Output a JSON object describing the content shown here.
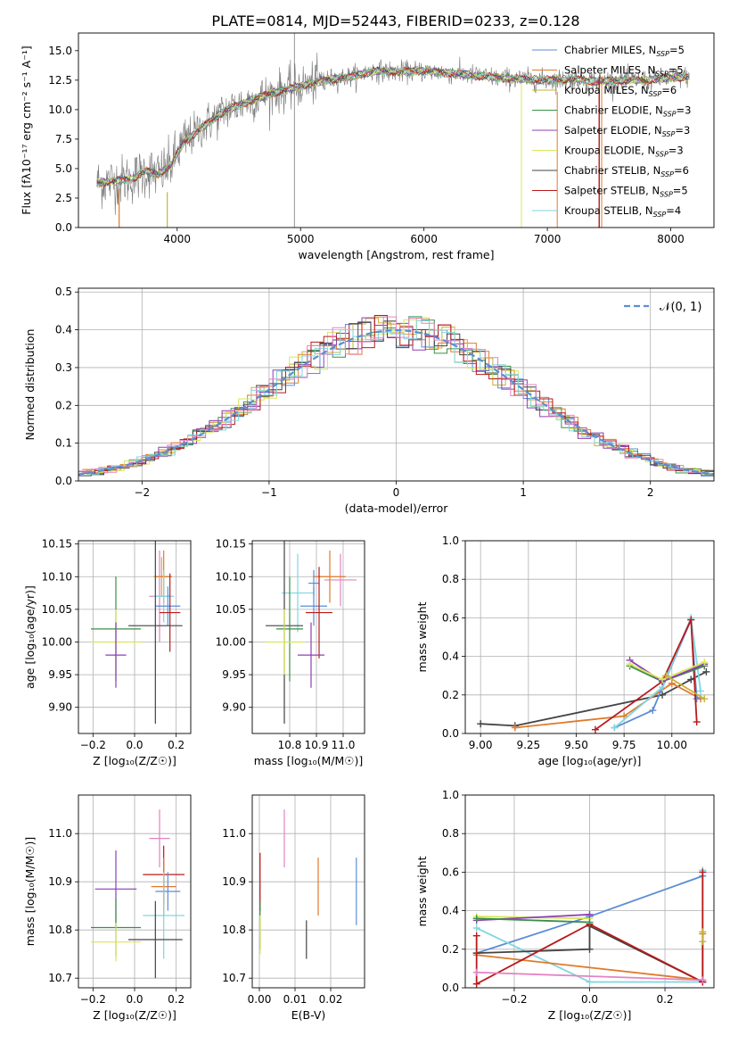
{
  "figure_title": "PLATE=0814, MJD=52443, FIBERID=0233, z=0.128",
  "colors": {
    "Chabrier MILES": "#5b8dd6",
    "Salpeter MILES": "#e07a2a",
    "Kroupa MILES": "#c8b23a",
    "Chabrier ELODIE": "#3a8f4a",
    "Salpeter ELODIE": "#8e3fb3",
    "Kroupa ELODIE": "#d9e65a",
    "Chabrier STELIB": "#444444",
    "Salpeter STELIB": "#b81a1a",
    "Kroupa STELIB": "#7fd6e0",
    "extra_pink": "#e384c2"
  },
  "chart_data": [
    {
      "type": "line",
      "panel": "spectrum",
      "title": "PLATE=0814, MJD=52443, FIBERID=0233, z=0.128",
      "xlabel": "wavelength [Angstrom, rest frame]",
      "ylabel": "Flux [fλ10⁻¹⁷ erg cm⁻² s⁻¹ A⁻¹]",
      "xlim": [
        3200,
        8350
      ],
      "ylim": [
        0,
        16.5
      ],
      "xticks": [
        "4000",
        "5000",
        "6000",
        "7000",
        "8000"
      ],
      "yticks": [
        "0.0",
        "2.5",
        "5.0",
        "7.5",
        "10.0",
        "12.5",
        "15.0"
      ],
      "legend_position": "right",
      "series": [
        {
          "name": "Chabrier MILES, N_SSP=5",
          "label": "Chabrier MILES, N",
          "sub": "SSP",
          "tail": "=5"
        },
        {
          "name": "Salpeter MILES, N_SSP=5",
          "label": "Salpeter MILES, N",
          "sub": "SSP",
          "tail": "=5"
        },
        {
          "name": "Kroupa MILES, N_SSP=6",
          "label": "Kroupa MILES, N",
          "sub": "SSP",
          "tail": "=6"
        },
        {
          "name": "Chabrier ELODIE, N_SSP=3",
          "label": "Chabrier ELODIE, N",
          "sub": "SSP",
          "tail": "=3"
        },
        {
          "name": "Salpeter ELODIE, N_SSP=3",
          "label": "Salpeter ELODIE, N",
          "sub": "SSP",
          "tail": "=3"
        },
        {
          "name": "Kroupa ELODIE, N_SSP=3",
          "label": "Kroupa ELODIE, N",
          "sub": "SSP",
          "tail": "=3"
        },
        {
          "name": "Chabrier STELIB, N_SSP=6",
          "label": "Chabrier STELIB, N",
          "sub": "SSP",
          "tail": "=6"
        },
        {
          "name": "Salpeter STELIB, N_SSP=5",
          "label": "Salpeter STELIB, N",
          "sub": "SSP",
          "tail": "=5"
        },
        {
          "name": "Kroupa STELIB, N_SSP=4",
          "label": "Kroupa STELIB, N",
          "sub": "SSP",
          "tail": "=4"
        }
      ],
      "continuum": {
        "x": [
          3350,
          3450,
          3550,
          3650,
          3750,
          3850,
          3950,
          4050,
          4200,
          4400,
          4600,
          4800,
          5000,
          5200,
          5400,
          5600,
          5800,
          6000,
          6200,
          6400,
          6600,
          6800,
          7000,
          7200,
          7400,
          7600,
          7800,
          8000,
          8150
        ],
        "y": [
          3.8,
          3.9,
          4.0,
          4.2,
          4.8,
          4.5,
          5.3,
          7.2,
          8.5,
          10.0,
          10.8,
          11.5,
          12.0,
          12.5,
          12.8,
          13.3,
          13.2,
          13.3,
          13.1,
          12.9,
          12.7,
          12.6,
          12.5,
          12.6,
          12.4,
          12.5,
          12.5,
          12.7,
          12.8
        ]
      }
    },
    {
      "type": "line",
      "panel": "residual-histogram",
      "xlabel": "(data-model)/error",
      "ylabel": "Normed distribution",
      "xlim": [
        -2.5,
        2.5
      ],
      "ylim": [
        0,
        0.51
      ],
      "xticks": [
        "−2",
        "−1",
        "0",
        "1",
        "2"
      ],
      "yticks": [
        "0.0",
        "0.1",
        "0.2",
        "0.3",
        "0.4",
        "0.5"
      ],
      "legend": "𝒩(0, 1)",
      "legend_position": "top-right",
      "bin_width": 0.1
    },
    {
      "type": "scatter",
      "panel": "age-vs-Z",
      "xlabel": "Z [log₁₀(Z/Z☉)]",
      "ylabel": "age  [log₁₀(age/yr)]",
      "xlim": [
        -0.27,
        0.27
      ],
      "ylim": [
        9.86,
        10.155
      ],
      "xticks": [
        "−0.2",
        "0.0",
        "0.2"
      ],
      "yticks": [
        "9.90",
        "9.95",
        "10.00",
        "10.05",
        "10.10",
        "10.15"
      ],
      "points": [
        {
          "s": "Kroupa MILES",
          "x": 0.13,
          "y": 10.1,
          "xe": 0.04,
          "ye": 0.03
        },
        {
          "s": "Salpeter MILES",
          "x": 0.14,
          "y": 10.1,
          "xe": 0.04,
          "ye": 0.04
        },
        {
          "s": "extra_pink",
          "x": 0.12,
          "y": 10.07,
          "xe": 0.05,
          "ye": 0.07
        },
        {
          "s": "Kroupa STELIB",
          "x": 0.14,
          "y": 10.07,
          "xe": 0.05,
          "ye": 0.04
        },
        {
          "s": "Chabrier MILES",
          "x": 0.16,
          "y": 10.055,
          "xe": 0.06,
          "ye": 0.03
        },
        {
          "s": "Salpeter STELIB",
          "x": 0.17,
          "y": 10.045,
          "xe": 0.05,
          "ye": 0.06
        },
        {
          "s": "Chabrier STELIB",
          "x": 0.1,
          "y": 10.025,
          "xe": 0.13,
          "ye": 0.15
        },
        {
          "s": "Chabrier ELODIE",
          "x": -0.09,
          "y": 10.02,
          "xe": 0.12,
          "ye": 0.08
        },
        {
          "s": "Kroupa ELODIE",
          "x": -0.09,
          "y": 10.0,
          "xe": 0.12,
          "ye": 0.05
        },
        {
          "s": "Salpeter ELODIE",
          "x": -0.09,
          "y": 9.98,
          "xe": 0.05,
          "ye": 0.05
        }
      ]
    },
    {
      "type": "scatter",
      "panel": "age-vs-mass",
      "xlabel": "mass [log₁₀(M/M☉)]",
      "ylabel": "",
      "xlim": [
        10.66,
        11.08
      ],
      "ylim": [
        9.86,
        10.155
      ],
      "xticks": [
        "10.8",
        "10.9",
        "11.0"
      ],
      "yticks": [
        "9.90",
        "9.95",
        "10.00",
        "10.05",
        "10.10",
        "10.15"
      ],
      "points": [
        {
          "s": "extra_pink",
          "x": 10.99,
          "y": 10.095,
          "xe": 0.06,
          "ye": 0.04
        },
        {
          "s": "Salpeter MILES",
          "x": 10.95,
          "y": 10.1,
          "xe": 0.06,
          "ye": 0.04
        },
        {
          "s": "Chabrier MILES",
          "x": 10.89,
          "y": 10.09,
          "xe": 0.02,
          "ye": 0.02
        },
        {
          "s": "Kroupa STELIB",
          "x": 10.83,
          "y": 10.075,
          "xe": 0.06,
          "ye": 0.06
        },
        {
          "s": "Chabrier MILES",
          "x": 10.89,
          "y": 10.055,
          "xe": 0.05,
          "ye": 0.03
        },
        {
          "s": "Salpeter STELIB",
          "x": 10.91,
          "y": 10.045,
          "xe": 0.05,
          "ye": 0.07
        },
        {
          "s": "Chabrier STELIB",
          "x": 10.78,
          "y": 10.025,
          "xe": 0.07,
          "ye": 0.15
        },
        {
          "s": "Chabrier ELODIE",
          "x": 10.8,
          "y": 10.02,
          "xe": 0.05,
          "ye": 0.08
        },
        {
          "s": "Kroupa ELODIE",
          "x": 10.78,
          "y": 10.0,
          "xe": 0.07,
          "ye": 0.05
        },
        {
          "s": "Salpeter ELODIE",
          "x": 10.88,
          "y": 9.98,
          "xe": 0.05,
          "ye": 0.05
        }
      ]
    },
    {
      "type": "line",
      "panel": "mass-weight-vs-age",
      "xlabel": "age  [log₁₀(age/yr)]",
      "ylabel": "mass weight",
      "xlim": [
        8.92,
        10.22
      ],
      "ylim": [
        0,
        1
      ],
      "xticks": [
        "9.00",
        "9.25",
        "9.50",
        "9.75",
        "10.00"
      ],
      "yticks": [
        "0.0",
        "0.2",
        "0.4",
        "0.6",
        "0.8",
        "1.0"
      ],
      "series": [
        {
          "s": "Chabrier STELIB",
          "x": [
            9.0,
            9.18,
            9.95,
            10.1,
            10.18
          ],
          "y": [
            0.05,
            0.04,
            0.2,
            0.28,
            0.32
          ]
        },
        {
          "s": "Salpeter MILES",
          "x": [
            9.18,
            9.75,
            10.0,
            10.15
          ],
          "y": [
            0.03,
            0.09,
            0.26,
            0.18
          ]
        },
        {
          "s": "Chabrier MILES",
          "x": [
            9.7,
            9.9,
            10.1,
            10.13
          ],
          "y": [
            0.03,
            0.12,
            0.59,
            0.18
          ]
        },
        {
          "s": "Kroupa STELIB",
          "x": [
            9.7,
            9.95,
            10.1,
            10.15
          ],
          "y": [
            0.03,
            0.24,
            0.6,
            0.22
          ]
        },
        {
          "s": "Salpeter STELIB",
          "x": [
            9.6,
            9.95,
            10.1,
            10.13
          ],
          "y": [
            0.02,
            0.27,
            0.59,
            0.06
          ]
        },
        {
          "s": "Chabrier ELODIE",
          "x": [
            9.78,
            9.95,
            10.17
          ],
          "y": [
            0.35,
            0.27,
            0.35
          ]
        },
        {
          "s": "Salpeter ELODIE",
          "x": [
            9.78,
            9.95,
            10.17
          ],
          "y": [
            0.38,
            0.27,
            0.36
          ]
        },
        {
          "s": "Kroupa ELODIE",
          "x": [
            9.78,
            9.95,
            10.17
          ],
          "y": [
            0.36,
            0.28,
            0.37
          ]
        },
        {
          "s": "Kroupa MILES",
          "x": [
            9.97,
            10.17
          ],
          "y": [
            0.3,
            0.18
          ]
        }
      ]
    },
    {
      "type": "scatter",
      "panel": "mass-vs-Z",
      "xlabel": "Z [log₁₀(Z/Z☉)]",
      "ylabel": "mass [log₁₀(M/M☉)]",
      "xlim": [
        -0.27,
        0.27
      ],
      "ylim": [
        10.68,
        11.08
      ],
      "xticks": [
        "−0.2",
        "0.0",
        "0.2"
      ],
      "yticks": [
        "10.7",
        "10.8",
        "10.9",
        "11.0"
      ],
      "points": [
        {
          "s": "extra_pink",
          "x": 0.12,
          "y": 10.99,
          "xe": 0.05,
          "ye": 0.06
        },
        {
          "s": "Salpeter STELIB",
          "x": 0.14,
          "y": 10.915,
          "xe": 0.1,
          "ye": 0.06
        },
        {
          "s": "Salpeter MILES",
          "x": 0.14,
          "y": 10.89,
          "xe": 0.06,
          "ye": 0.06
        },
        {
          "s": "Chabrier MILES",
          "x": 0.16,
          "y": 10.88,
          "xe": 0.06,
          "ye": 0.04
        },
        {
          "s": "Salpeter ELODIE",
          "x": -0.09,
          "y": 10.885,
          "xe": 0.1,
          "ye": 0.08
        },
        {
          "s": "Kroupa STELIB",
          "x": 0.14,
          "y": 10.83,
          "xe": 0.1,
          "ye": 0.09
        },
        {
          "s": "Chabrier ELODIE",
          "x": -0.09,
          "y": 10.805,
          "xe": 0.12,
          "ye": 0.06
        },
        {
          "s": "Chabrier STELIB",
          "x": 0.1,
          "y": 10.78,
          "xe": 0.13,
          "ye": 0.08
        },
        {
          "s": "Kroupa ELODIE",
          "x": -0.09,
          "y": 10.775,
          "xe": 0.12,
          "ye": 0.04
        }
      ]
    },
    {
      "type": "scatter",
      "panel": "mass-vs-EBV",
      "xlabel": "E(B-V)",
      "ylabel": "",
      "xlim": [
        -0.002,
        0.0295
      ],
      "ylim": [
        10.68,
        11.08
      ],
      "xticks": [
        "0.00",
        "0.01",
        "0.02"
      ],
      "yticks": [
        "10.7",
        "10.8",
        "10.9",
        "11.0"
      ],
      "points": [
        {
          "s": "Salpeter STELIB",
          "x": 0.0002,
          "y": 10.9,
          "xe": 0,
          "ye": 0.06
        },
        {
          "s": "Chabrier ELODIE",
          "x": 0.0002,
          "y": 10.81,
          "xe": 0,
          "ye": 0.05
        },
        {
          "s": "Kroupa ELODIE",
          "x": 0.0002,
          "y": 10.79,
          "xe": 0,
          "ye": 0.04
        },
        {
          "s": "extra_pink",
          "x": 0.007,
          "y": 10.99,
          "xe": 0,
          "ye": 0.06
        },
        {
          "s": "Chabrier STELIB",
          "x": 0.0132,
          "y": 10.78,
          "xe": 0,
          "ye": 0.04
        },
        {
          "s": "Salpeter MILES",
          "x": 0.0165,
          "y": 10.89,
          "xe": 0,
          "ye": 0.06
        },
        {
          "s": "Chabrier MILES",
          "x": 0.0272,
          "y": 10.88,
          "xe": 0,
          "ye": 0.07
        }
      ]
    },
    {
      "type": "line",
      "panel": "mass-weight-vs-Z",
      "xlabel": "Z [log₁₀(Z/Z☉)]",
      "ylabel": "mass weight",
      "xlim": [
        -0.33,
        0.33
      ],
      "ylim": [
        0,
        1
      ],
      "xticks": [
        "−0.2",
        "0.0",
        "0.2"
      ],
      "yticks": [
        "0.0",
        "0.2",
        "0.4",
        "0.6",
        "0.8",
        "1.0"
      ],
      "series": [
        {
          "s": "Chabrier MILES",
          "x": [
            -0.3,
            0.0,
            0.3
          ],
          "y": [
            0.18,
            0.37,
            0.58
          ]
        },
        {
          "s": "Kroupa STELIB",
          "x": [
            -0.3,
            0.0,
            0.3,
            0.3
          ],
          "y": [
            0.31,
            0.03,
            0.03,
            0.61
          ]
        },
        {
          "s": "Chabrier STELIB",
          "x": [
            -0.3,
            0.0,
            0.0,
            0.3
          ],
          "y": [
            0.18,
            0.2,
            0.32,
            0.03
          ]
        },
        {
          "s": "Salpeter MILES",
          "x": [
            -0.3,
            0.3,
            0.3
          ],
          "y": [
            0.17,
            0.04,
            0.28
          ]
        },
        {
          "s": "Salpeter STELIB",
          "x": [
            -0.3,
            -0.3,
            0.0,
            0.3,
            0.3
          ],
          "y": [
            0.27,
            0.02,
            0.33,
            0.03,
            0.6
          ]
        },
        {
          "s": "Kroupa ELODIE",
          "x": [
            -0.3,
            0.0
          ],
          "y": [
            0.37,
            0.36
          ]
        },
        {
          "s": "Salpeter ELODIE",
          "x": [
            -0.3,
            0.0
          ],
          "y": [
            0.35,
            0.38
          ]
        },
        {
          "s": "Chabrier ELODIE",
          "x": [
            -0.3,
            0.0
          ],
          "y": [
            0.36,
            0.34
          ]
        },
        {
          "s": "extra_pink",
          "x": [
            -0.3,
            0.3
          ],
          "y": [
            0.08,
            0.04
          ]
        },
        {
          "s": "Kroupa MILES",
          "x": [
            0.3,
            0.3
          ],
          "y": [
            0.24,
            0.29
          ]
        }
      ]
    }
  ]
}
